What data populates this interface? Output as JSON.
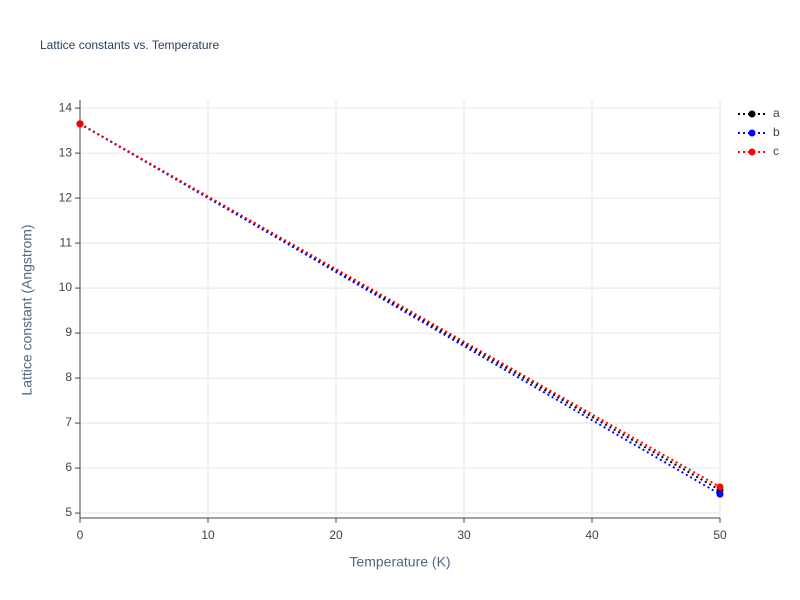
{
  "chart_data": {
    "type": "line",
    "title": "Lattice constants vs. Temperature",
    "x_label": "Temperature (K)",
    "y_label": "Lattice constant (Angstrom)",
    "x": [
      0,
      50
    ],
    "series": [
      {
        "name": "a",
        "color": "#000000",
        "values": [
          13.65,
          5.51
        ]
      },
      {
        "name": "b",
        "color": "#0000ff",
        "values": [
          13.65,
          5.42
        ]
      },
      {
        "name": "c",
        "color": "#ff0000",
        "values": [
          13.65,
          5.58
        ]
      }
    ],
    "xlim": [
      0,
      50
    ],
    "xticks": [
      0,
      10,
      20,
      30,
      40,
      50
    ],
    "ylim": [
      4.89,
      14.18
    ],
    "yticks": [
      5,
      6,
      7,
      8,
      9,
      10,
      11,
      12,
      13,
      14
    ],
    "grid": true,
    "legend": "top-right"
  }
}
